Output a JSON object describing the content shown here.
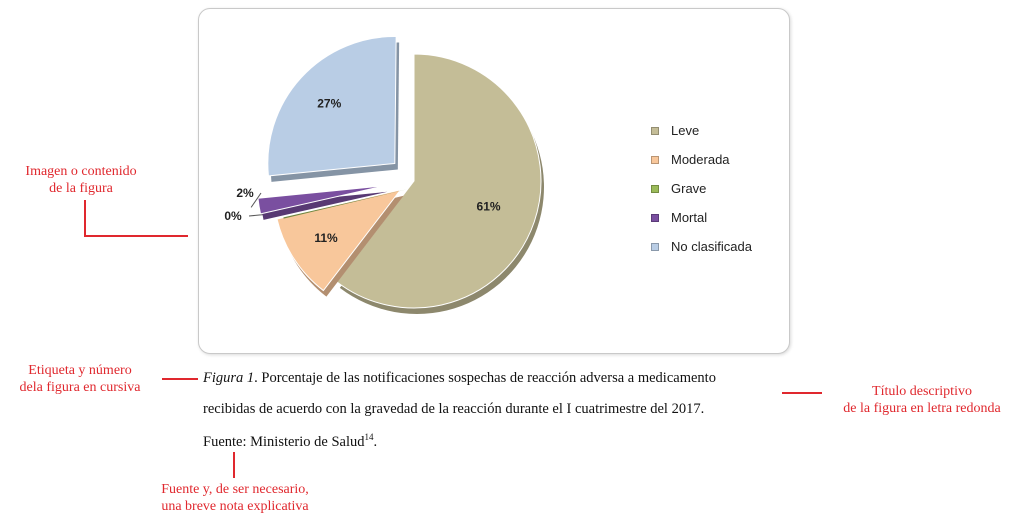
{
  "chart_data": {
    "type": "pie",
    "categories": [
      "Leve",
      "Moderada",
      "Grave",
      "Mortal",
      "No clasificada"
    ],
    "values": [
      61,
      11,
      0,
      2,
      27
    ],
    "data_labels": [
      "61%",
      "11%",
      "0%",
      "2%",
      "27%"
    ],
    "colors": [
      "#c4bd97",
      "#f8c79b",
      "#9bbb59",
      "#7a4fa0",
      "#b9cde5"
    ],
    "legend_position": "right",
    "exploded": true,
    "style": "3d"
  },
  "caption": {
    "figure_label": "Figura 1",
    "title_line1": ". Porcentaje de las notificaciones sospechas de reacción adversa a medicamento",
    "title_line2": "recibidas de acuerdo con la gravedad de la reacción durante el I cuatrimestre del 2017.",
    "source_text": "Fuente: Ministerio de Salud",
    "source_ref": "14",
    "source_end": "."
  },
  "annotations": {
    "image_line1": "Imagen o contenido",
    "image_line2": "de la figura",
    "label_line1": "Etiqueta y número",
    "label_line2": "dela figura en cursiva",
    "title_line1": "Título descriptivo",
    "title_line2": "de la figura en letra redonda",
    "source_line1": "Fuente y, de ser necesario,",
    "source_line2": "una breve nota explicativa"
  }
}
